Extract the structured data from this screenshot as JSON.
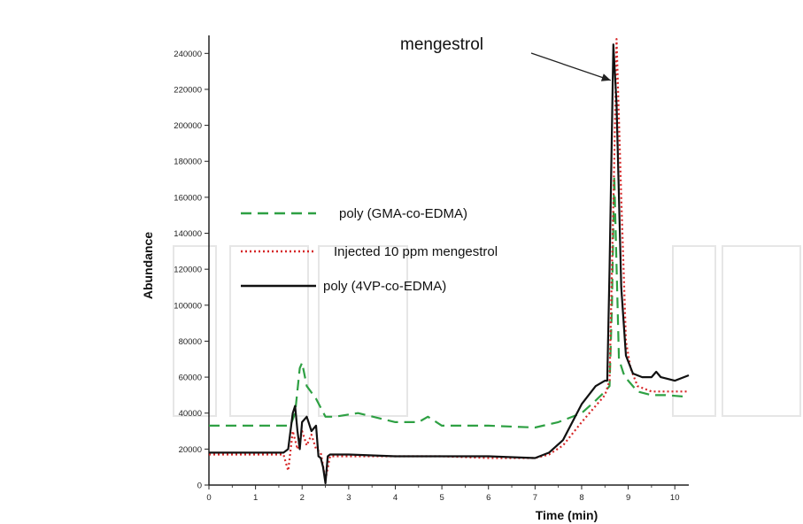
{
  "chart_data": {
    "type": "line",
    "title": "",
    "xlabel": "Time (min)",
    "ylabel": "Abundance",
    "xlim": [
      0,
      10.3
    ],
    "ylim": [
      0,
      250000
    ],
    "x_ticks": [
      0,
      1,
      2,
      3,
      4,
      5,
      6,
      7,
      8,
      9,
      10
    ],
    "y_ticks": [
      0,
      20000,
      40000,
      60000,
      80000,
      100000,
      120000,
      140000,
      160000,
      180000,
      200000,
      220000,
      240000
    ],
    "grid": false,
    "legend": "center-left",
    "annotations": [
      {
        "text": "mengestrol",
        "points_to_x": 8.7,
        "points_to_y": 225000
      }
    ],
    "series": [
      {
        "name": "poly (GMA-co-EDMA)",
        "color": "#2ea043",
        "dash": "dashed",
        "x": [
          0,
          1.75,
          1.85,
          1.95,
          2.0,
          2.1,
          2.3,
          2.5,
          2.7,
          3.2,
          4.0,
          4.5,
          4.7,
          5.0,
          6.0,
          7.0,
          7.5,
          8.0,
          8.3,
          8.5,
          8.6,
          8.65,
          8.7,
          8.8,
          8.9,
          9.0,
          9.2,
          9.5,
          9.8,
          10.3
        ],
        "y": [
          33000,
          33000,
          40000,
          65000,
          68000,
          55000,
          48000,
          38000,
          38000,
          40000,
          35000,
          35000,
          38000,
          33000,
          33000,
          32000,
          35000,
          40000,
          47000,
          52000,
          55000,
          100000,
          172000,
          70000,
          62000,
          58000,
          52000,
          50000,
          50000,
          49000
        ]
      },
      {
        "name": "Injected 10 ppm  mengestrol",
        "color": "#d62728",
        "dash": "dotted",
        "x": [
          0,
          1.6,
          1.7,
          1.8,
          1.9,
          2.0,
          2.1,
          2.2,
          2.3,
          2.4,
          2.5,
          2.6,
          3.0,
          4.0,
          5.0,
          6.0,
          7.0,
          7.3,
          7.6,
          8.0,
          8.3,
          8.5,
          8.6,
          8.7,
          8.75,
          8.85,
          8.95,
          9.05,
          9.2,
          9.5,
          9.8,
          10.3
        ],
        "y": [
          17000,
          17000,
          8000,
          30000,
          20000,
          30000,
          22000,
          28000,
          20000,
          18000,
          3000,
          16000,
          16000,
          16000,
          16000,
          15000,
          15000,
          17000,
          22000,
          35000,
          44000,
          50000,
          58000,
          180000,
          248000,
          160000,
          80000,
          65000,
          55000,
          52000,
          52000,
          52000
        ]
      },
      {
        "name": "poly (4VP-co-EDMA)",
        "color": "#111111",
        "dash": "solid",
        "x": [
          0,
          1.6,
          1.7,
          1.8,
          1.85,
          1.9,
          1.95,
          2.0,
          2.1,
          2.2,
          2.3,
          2.35,
          2.4,
          2.45,
          2.5,
          2.55,
          2.6,
          3.0,
          4.0,
          5.0,
          6.0,
          7.0,
          7.3,
          7.6,
          8.0,
          8.3,
          8.5,
          8.55,
          8.6,
          8.68,
          8.75,
          8.85,
          8.95,
          9.1,
          9.3,
          9.5,
          9.6,
          9.7,
          10.0,
          10.3
        ],
        "y": [
          18000,
          18000,
          20000,
          40000,
          44000,
          30000,
          20000,
          35000,
          38000,
          30000,
          33000,
          16000,
          15000,
          10000,
          1000,
          16000,
          17000,
          17000,
          16000,
          16000,
          16000,
          15000,
          18000,
          25000,
          45000,
          55000,
          58000,
          58000,
          120000,
          245000,
          212000,
          110000,
          72000,
          62000,
          60000,
          60000,
          63000,
          60000,
          58000,
          61000
        ]
      }
    ]
  }
}
